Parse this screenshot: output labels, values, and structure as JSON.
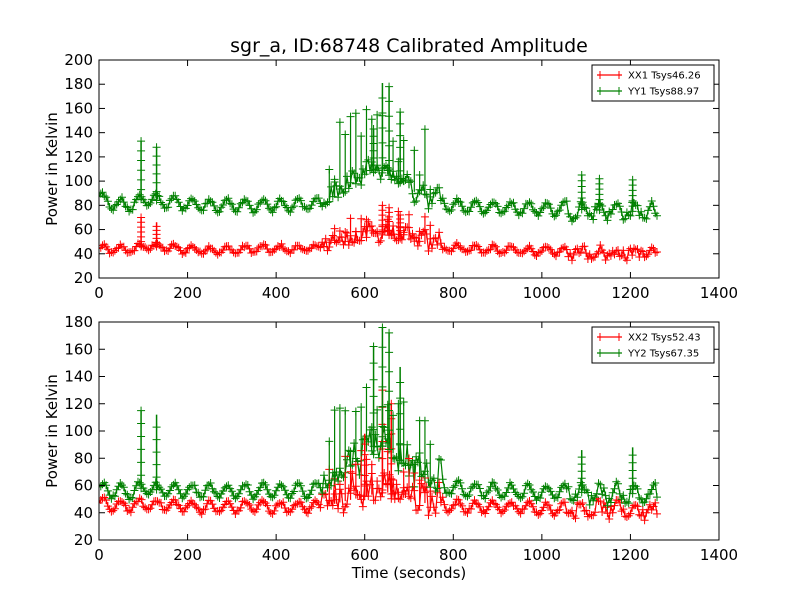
{
  "chart_data": [
    {
      "type": "line",
      "title": "sgr_a, ID:68748 Calibrated Amplitude",
      "xlabel": "",
      "ylabel": "Power in Kelvin",
      "xlim": [
        0,
        1400
      ],
      "ylim": [
        20,
        200
      ],
      "xticks": [
        "0",
        "200",
        "400",
        "600",
        "800",
        "1000",
        "1200",
        "1400"
      ],
      "yticks": [
        "20",
        "40",
        "60",
        "80",
        "100",
        "120",
        "140",
        "160",
        "180",
        "200"
      ],
      "legend_position": "top-right",
      "grid": false,
      "series": [
        {
          "name": "XX1 Tsys46.26",
          "color": "#ff0000",
          "marker": "+",
          "x": [
            0,
            25,
            50,
            75,
            95,
            130,
            175,
            250,
            300,
            350,
            400,
            450,
            500,
            525,
            550,
            575,
            600,
            625,
            650,
            675,
            700,
            725,
            750,
            800,
            850,
            900,
            950,
            1000,
            1050,
            1075,
            1100,
            1125,
            1150,
            1175,
            1200,
            1225,
            1250,
            1260
          ],
          "y": [
            44,
            43,
            44,
            43,
            46,
            46,
            44,
            43,
            43,
            44,
            44,
            44,
            45,
            47,
            49,
            51,
            53,
            55,
            56,
            53,
            51,
            49,
            47,
            45,
            44,
            43,
            43,
            42,
            42,
            41,
            42,
            41,
            41,
            41,
            41,
            41,
            40,
            40
          ]
        },
        {
          "name": "YY1 Tsys88.97",
          "color": "#008000",
          "marker": "+",
          "x": [
            0,
            25,
            50,
            75,
            95,
            130,
            175,
            250,
            300,
            350,
            400,
            450,
            500,
            525,
            550,
            575,
            600,
            625,
            650,
            675,
            700,
            725,
            750,
            800,
            850,
            900,
            950,
            1000,
            1050,
            1075,
            1100,
            1125,
            1150,
            1175,
            1200,
            1225,
            1250,
            1260
          ],
          "y": [
            86,
            82,
            81,
            80,
            85,
            84,
            82,
            80,
            80,
            80,
            80,
            80,
            82,
            85,
            90,
            97,
            104,
            108,
            106,
            100,
            94,
            88,
            84,
            80,
            79,
            78,
            78,
            77,
            77,
            76,
            77,
            76,
            76,
            76,
            75,
            75,
            75,
            75
          ]
        }
      ],
      "spikes": [
        {
          "series": "XX1 Tsys46.26",
          "x": [
            95,
            130,
            640,
            655,
            680
          ],
          "y": [
            70,
            66,
            80,
            78,
            72
          ]
        },
        {
          "series": "YY1 Tsys88.97",
          "x": [
            95,
            130,
            640,
            655,
            680,
            620,
            1090,
            1130,
            1205
          ],
          "y": [
            133,
            128,
            181,
            178,
            157,
            143,
            105,
            102,
            101
          ]
        }
      ]
    },
    {
      "type": "line",
      "title": "",
      "xlabel": "Time (seconds)",
      "ylabel": "Power in Kelvin",
      "xlim": [
        0,
        1400
      ],
      "ylim": [
        20,
        180
      ],
      "xticks": [
        "0",
        "200",
        "400",
        "600",
        "800",
        "1000",
        "1200",
        "1400"
      ],
      "yticks": [
        "20",
        "40",
        "60",
        "80",
        "100",
        "120",
        "140",
        "160",
        "180"
      ],
      "legend_position": "top-right",
      "grid": false,
      "series": [
        {
          "name": "XX2 Tsys52.43",
          "color": "#ff0000",
          "marker": "+",
          "x": [
            0,
            25,
            50,
            75,
            95,
            130,
            175,
            250,
            300,
            350,
            400,
            450,
            500,
            525,
            550,
            575,
            600,
            625,
            650,
            675,
            700,
            725,
            750,
            800,
            850,
            900,
            950,
            1000,
            1050,
            1075,
            1100,
            1125,
            1150,
            1175,
            1200,
            1225,
            1250,
            1260
          ],
          "y": [
            47,
            45,
            45,
            45,
            46,
            46,
            45,
            44,
            44,
            45,
            44,
            44,
            45,
            46,
            48,
            50,
            52,
            54,
            55,
            52,
            50,
            48,
            46,
            45,
            44,
            44,
            44,
            43,
            43,
            43,
            43,
            43,
            43,
            42,
            42,
            42,
            42,
            42
          ]
        },
        {
          "name": "YY2 Tsys67.35",
          "color": "#008000",
          "marker": "+",
          "x": [
            0,
            25,
            50,
            75,
            95,
            130,
            175,
            250,
            300,
            350,
            400,
            450,
            500,
            525,
            550,
            575,
            600,
            625,
            650,
            675,
            700,
            725,
            750,
            800,
            850,
            900,
            950,
            1000,
            1050,
            1075,
            1100,
            1125,
            1150,
            1175,
            1200,
            1225,
            1250,
            1260
          ],
          "y": [
            58,
            56,
            56,
            55,
            58,
            57,
            56,
            56,
            56,
            56,
            56,
            56,
            58,
            62,
            68,
            76,
            84,
            90,
            88,
            80,
            72,
            66,
            60,
            58,
            57,
            56,
            56,
            55,
            55,
            55,
            55,
            54,
            54,
            54,
            54,
            54,
            54,
            54
          ]
        }
      ],
      "spikes": [
        {
          "series": "XX2 Tsys52.43",
          "x": [
            640,
            660,
            600
          ],
          "y": [
            130,
            120,
            98
          ]
        },
        {
          "series": "YY2 Tsys67.35",
          "x": [
            95,
            130,
            640,
            655,
            680,
            620,
            1090,
            1205
          ],
          "y": [
            115,
            112,
            176,
            172,
            147,
            162,
            86,
            88
          ]
        }
      ]
    }
  ]
}
